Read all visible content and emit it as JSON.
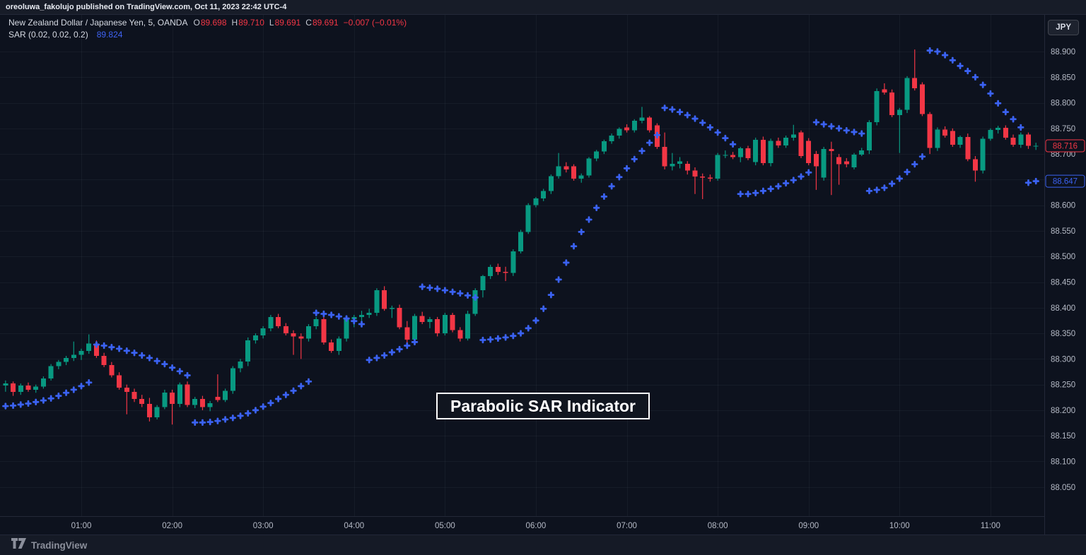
{
  "top_bar": {
    "text": "oreoluwa_fakolujo published on TradingView.com, Oct 11, 2023 22:42 UTC-4"
  },
  "legend": {
    "row1": [
      {
        "text": "New Zealand Dollar / Japanese Yen, 5, OANDA",
        "color": "base"
      },
      {
        "text": "O",
        "color": "label"
      },
      {
        "text": "89.698",
        "color": "down"
      },
      {
        "text": "H",
        "color": "label"
      },
      {
        "text": "89.710",
        "color": "down"
      },
      {
        "text": "L",
        "color": "label"
      },
      {
        "text": "89.691",
        "color": "down"
      },
      {
        "text": "C",
        "color": "label"
      },
      {
        "text": "89.691",
        "color": "down"
      },
      {
        "text": "−0.007 (−0.01%)",
        "color": "down"
      }
    ],
    "row2": [
      {
        "text": "SAR (0.02, 0.02, 0.2)",
        "color": "base"
      },
      {
        "text": "89.824",
        "color": "sar"
      }
    ]
  },
  "currency_button": {
    "label": "JPY"
  },
  "annotation": {
    "text": "Parabolic SAR Indicator"
  },
  "footer": {
    "brand": "TradingView"
  },
  "chart_data": {
    "type": "candlestick",
    "pair": "New Zealand Dollar / Japanese Yen",
    "interval": "5",
    "exchange": "OANDA",
    "indicator": "SAR (0.02, 0.02, 0.2)",
    "first_candle_time": "00:10",
    "interval_minutes": 5,
    "price_axis": {
      "min": 88.05,
      "max": 88.9,
      "step": 0.05,
      "labels": [
        "88.900",
        "88.850",
        "88.800",
        "88.750",
        "88.700",
        "88.600",
        "88.550",
        "88.500",
        "88.450",
        "88.400",
        "88.350",
        "88.300",
        "88.250",
        "88.200",
        "88.150",
        "88.100",
        "88.050"
      ],
      "last_price_tag": "88.716",
      "sar_price_tag": "88.647"
    },
    "time_axis": {
      "labels": [
        "01:00",
        "02:00",
        "03:00",
        "04:00",
        "05:00",
        "06:00",
        "07:00",
        "08:00",
        "09:00",
        "10:00",
        "11:00"
      ]
    },
    "colors": {
      "up": "#089981",
      "down": "#f23645",
      "sar": "#3b62f2",
      "grid": "rgba(140,150,170,0.08)",
      "axis_text": "#b5bac6",
      "separator": "#232838",
      "tag_bg": "#0d121e"
    },
    "candles": [
      [
        88.248,
        88.258,
        88.236,
        88.252
      ],
      [
        88.252,
        88.256,
        88.228,
        88.236
      ],
      [
        88.236,
        88.252,
        88.23,
        88.248
      ],
      [
        88.248,
        88.254,
        88.236,
        88.24
      ],
      [
        88.24,
        88.25,
        88.234,
        88.246
      ],
      [
        88.246,
        88.266,
        88.242,
        88.262
      ],
      [
        88.262,
        88.29,
        88.258,
        88.286
      ],
      [
        88.286,
        88.298,
        88.28,
        88.294
      ],
      [
        88.294,
        88.306,
        88.288,
        88.302
      ],
      [
        88.302,
        88.334,
        88.296,
        88.308
      ],
      [
        88.308,
        88.32,
        88.298,
        88.316
      ],
      [
        88.316,
        88.348,
        88.31,
        88.33
      ],
      [
        88.33,
        88.336,
        88.302,
        88.306
      ],
      [
        88.306,
        88.312,
        88.284,
        88.288
      ],
      [
        88.288,
        88.294,
        88.264,
        88.268
      ],
      [
        88.268,
        88.274,
        88.24,
        88.244
      ],
      [
        88.244,
        88.25,
        88.192,
        88.236
      ],
      [
        88.236,
        88.242,
        88.216,
        88.222
      ],
      [
        88.222,
        88.23,
        88.206,
        88.212
      ],
      [
        88.212,
        88.224,
        88.178,
        88.186
      ],
      [
        88.186,
        88.21,
        88.182,
        88.206
      ],
      [
        88.206,
        88.24,
        88.202,
        88.234
      ],
      [
        88.234,
        88.24,
        88.172,
        88.212
      ],
      [
        88.212,
        88.254,
        88.206,
        88.25
      ],
      [
        88.25,
        88.256,
        88.206,
        88.21
      ],
      [
        88.21,
        88.226,
        88.204,
        88.222
      ],
      [
        88.222,
        88.228,
        88.2,
        88.206
      ],
      [
        88.206,
        88.218,
        88.198,
        88.214
      ],
      [
        88.226,
        88.27,
        88.216,
        88.22
      ],
      [
        88.22,
        88.242,
        88.216,
        88.238
      ],
      [
        88.238,
        88.286,
        88.232,
        88.282
      ],
      [
        88.282,
        88.3,
        88.274,
        88.295
      ],
      [
        88.295,
        88.342,
        88.286,
        88.336
      ],
      [
        88.336,
        88.35,
        88.33,
        88.346
      ],
      [
        88.346,
        88.364,
        88.34,
        88.36
      ],
      [
        88.36,
        88.386,
        88.354,
        88.382
      ],
      [
        88.382,
        88.388,
        88.36,
        88.364
      ],
      [
        88.364,
        88.37,
        88.346,
        88.35
      ],
      [
        88.35,
        88.356,
        88.308,
        88.344
      ],
      [
        88.344,
        88.35,
        88.3,
        88.34
      ],
      [
        88.34,
        88.368,
        88.334,
        88.364
      ],
      [
        88.364,
        88.382,
        88.358,
        88.378
      ],
      [
        88.378,
        88.384,
        88.328,
        88.332
      ],
      [
        88.332,
        88.338,
        88.312,
        88.316
      ],
      [
        88.316,
        88.344,
        88.308,
        88.34
      ],
      [
        88.34,
        88.382,
        88.334,
        88.378
      ],
      [
        88.378,
        88.386,
        88.362,
        88.382
      ],
      [
        88.382,
        88.394,
        88.374,
        88.386
      ],
      [
        88.386,
        88.398,
        88.38,
        88.39
      ],
      [
        88.39,
        88.438,
        88.384,
        88.434
      ],
      [
        88.434,
        88.442,
        88.394,
        88.398
      ],
      [
        88.398,
        88.404,
        88.38,
        88.4
      ],
      [
        88.4,
        88.406,
        88.358,
        88.362
      ],
      [
        88.362,
        88.374,
        88.33,
        88.338
      ],
      [
        88.338,
        88.388,
        88.332,
        88.384
      ],
      [
        88.384,
        88.392,
        88.368,
        88.372
      ],
      [
        88.372,
        88.382,
        88.36,
        88.378
      ],
      [
        88.378,
        88.382,
        88.344,
        88.35
      ],
      [
        88.35,
        88.39,
        88.346,
        88.386
      ],
      [
        88.386,
        88.39,
        88.352,
        88.356
      ],
      [
        88.356,
        88.362,
        88.334,
        88.34
      ],
      [
        88.34,
        88.394,
        88.336,
        88.388
      ],
      [
        88.388,
        88.438,
        88.384,
        88.434
      ],
      [
        88.434,
        88.464,
        88.42,
        88.462
      ],
      [
        88.462,
        88.484,
        88.456,
        88.48
      ],
      [
        88.48,
        88.486,
        88.464,
        88.47
      ],
      [
        88.47,
        88.48,
        88.452,
        88.468
      ],
      [
        88.468,
        88.514,
        88.462,
        88.51
      ],
      [
        88.51,
        88.552,
        88.506,
        88.548
      ],
      [
        88.548,
        88.604,
        88.544,
        88.6
      ],
      [
        88.6,
        88.616,
        88.596,
        88.613
      ],
      [
        88.613,
        88.632,
        88.608,
        88.628
      ],
      [
        88.628,
        88.66,
        88.622,
        88.657
      ],
      [
        88.657,
        88.702,
        88.652,
        88.676
      ],
      [
        88.676,
        88.684,
        88.664,
        88.67
      ],
      [
        88.676,
        88.68,
        88.648,
        88.652
      ],
      [
        88.652,
        88.662,
        88.644,
        88.658
      ],
      [
        88.658,
        88.694,
        88.654,
        88.691
      ],
      [
        88.691,
        88.708,
        88.686,
        88.705
      ],
      [
        88.705,
        88.728,
        88.7,
        88.725
      ],
      [
        88.725,
        88.74,
        88.72,
        88.736
      ],
      [
        88.736,
        88.752,
        88.73,
        88.749
      ],
      [
        88.752,
        88.758,
        88.742,
        88.746
      ],
      [
        88.746,
        88.768,
        88.742,
        88.765
      ],
      [
        88.765,
        88.792,
        88.76,
        88.771
      ],
      [
        88.771,
        88.774,
        88.742,
        88.746
      ],
      [
        88.756,
        88.76,
        88.71,
        88.714
      ],
      [
        88.714,
        88.742,
        88.67,
        88.676
      ],
      [
        88.676,
        88.702,
        88.668,
        88.681
      ],
      [
        88.681,
        88.694,
        88.672,
        88.686
      ],
      [
        88.681,
        88.686,
        88.66,
        88.668
      ],
      [
        88.668,
        88.674,
        88.622,
        88.656
      ],
      [
        88.656,
        88.662,
        88.612,
        88.654
      ],
      [
        88.654,
        88.66,
        88.646,
        88.652
      ],
      [
        88.652,
        88.702,
        88.648,
        88.698
      ],
      [
        88.698,
        88.707,
        88.692,
        88.698
      ],
      [
        88.698,
        88.704,
        88.69,
        88.694
      ],
      [
        88.694,
        88.714,
        88.684,
        88.711
      ],
      [
        88.711,
        88.716,
        88.688,
        88.692
      ],
      [
        88.684,
        88.732,
        88.678,
        88.728
      ],
      [
        88.728,
        88.734,
        88.678,
        88.682
      ],
      [
        88.682,
        88.73,
        88.676,
        88.726
      ],
      [
        88.726,
        88.732,
        88.712,
        88.717
      ],
      [
        88.717,
        88.736,
        88.712,
        88.732
      ],
      [
        88.732,
        88.757,
        88.726,
        88.738
      ],
      [
        88.742,
        88.746,
        88.692,
        88.696
      ],
      [
        88.726,
        88.731,
        88.678,
        88.682
      ],
      [
        88.7,
        88.706,
        88.63,
        88.676
      ],
      [
        88.654,
        88.714,
        88.648,
        88.71
      ],
      [
        88.71,
        88.724,
        88.62,
        88.706
      ],
      [
        88.694,
        88.7,
        88.64,
        88.68
      ],
      [
        88.686,
        88.692,
        88.674,
        88.68
      ],
      [
        88.674,
        88.702,
        88.67,
        88.699
      ],
      [
        88.699,
        88.712,
        88.696,
        88.707
      ],
      [
        88.707,
        88.766,
        88.7,
        88.762
      ],
      [
        88.762,
        88.828,
        88.756,
        88.823
      ],
      [
        88.826,
        88.838,
        88.816,
        88.82
      ],
      [
        88.82,
        88.826,
        88.772,
        88.776
      ],
      [
        88.776,
        88.79,
        88.702,
        88.786
      ],
      [
        88.786,
        88.852,
        88.78,
        88.848
      ],
      [
        88.848,
        88.904,
        88.824,
        88.828
      ],
      [
        88.836,
        88.84,
        88.774,
        88.778
      ],
      [
        88.778,
        88.782,
        88.7,
        88.712
      ],
      [
        88.712,
        88.752,
        88.706,
        88.748
      ],
      [
        88.748,
        88.754,
        88.732,
        88.736
      ],
      [
        88.745,
        88.75,
        88.714,
        88.718
      ],
      [
        88.718,
        88.736,
        88.712,
        88.733
      ],
      [
        88.733,
        88.74,
        88.686,
        88.69
      ],
      [
        88.69,
        88.696,
        88.646,
        88.668
      ],
      [
        88.668,
        88.734,
        88.662,
        88.73
      ],
      [
        88.73,
        88.75,
        88.726,
        88.747
      ],
      [
        88.747,
        88.755,
        88.74,
        88.751
      ],
      [
        88.751,
        88.756,
        88.728,
        88.732
      ],
      [
        88.732,
        88.738,
        88.714,
        88.718
      ],
      [
        88.718,
        88.742,
        88.712,
        88.738
      ],
      [
        88.738,
        88.742,
        88.71,
        88.716
      ],
      [
        88.716,
        88.722,
        88.708,
        88.716
      ]
    ],
    "sar": [
      88.208,
      88.209,
      88.211,
      88.213,
      88.216,
      88.219,
      88.223,
      88.228,
      88.234,
      88.24,
      88.247,
      88.254,
      88.328,
      88.326,
      88.323,
      88.32,
      88.316,
      88.312,
      88.307,
      88.302,
      88.296,
      88.29,
      88.283,
      88.276,
      88.268,
      88.176,
      88.176,
      88.177,
      88.179,
      88.182,
      88.185,
      88.189,
      88.194,
      88.2,
      88.207,
      88.214,
      88.222,
      88.23,
      88.238,
      88.247,
      88.256,
      88.39,
      88.388,
      88.386,
      88.383,
      88.379,
      88.374,
      88.368,
      88.298,
      88.302,
      88.307,
      88.313,
      88.319,
      88.326,
      88.333,
      88.441,
      88.439,
      88.437,
      88.434,
      88.431,
      88.428,
      88.424,
      88.42,
      88.337,
      88.338,
      88.34,
      88.342,
      88.345,
      88.35,
      88.36,
      88.375,
      88.398,
      88.425,
      88.455,
      88.488,
      88.52,
      88.548,
      88.572,
      88.595,
      88.617,
      88.637,
      88.655,
      88.672,
      88.69,
      88.706,
      88.722,
      88.737,
      88.79,
      88.787,
      88.782,
      88.776,
      88.769,
      88.761,
      88.752,
      88.742,
      88.731,
      88.719,
      88.622,
      88.622,
      88.624,
      88.628,
      88.632,
      88.637,
      88.643,
      88.649,
      88.656,
      88.664,
      88.762,
      88.758,
      88.754,
      88.75,
      88.746,
      88.743,
      88.74,
      88.628,
      88.63,
      88.634,
      88.642,
      88.652,
      88.665,
      88.68,
      88.695,
      88.902,
      88.9,
      88.893,
      88.883,
      88.872,
      88.862,
      88.85,
      88.835,
      88.818,
      88.799,
      88.782,
      88.768,
      88.752,
      88.644,
      88.647
    ]
  }
}
